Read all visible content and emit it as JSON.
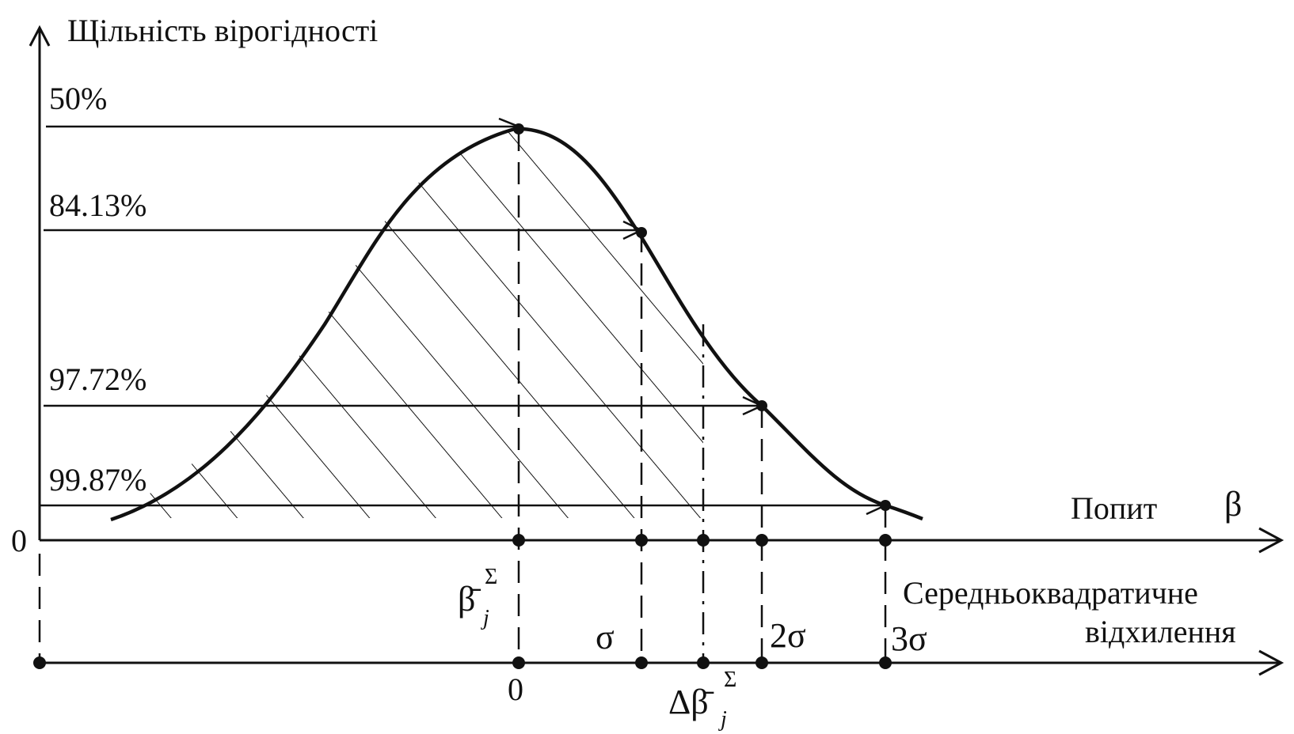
{
  "labels": {
    "y_axis": "Щільність вірогідності",
    "zero_y": "0",
    "demand": "Попит",
    "beta": "β",
    "rms_line1": "Середньоквадратичне",
    "rms_line2": "відхилення",
    "beta_mean_base": "β̄",
    "beta_mean_sub": "j",
    "beta_mean_sup": "Σ",
    "delta_beta_base": "Δβ̄",
    "delta_beta_sub": "j",
    "delta_beta_sup": "Σ",
    "zero_bottom": "0",
    "sigma1": "σ",
    "sigma2": "2σ",
    "sigma3": "3σ"
  },
  "percent_levels": [
    {
      "label": "50%"
    },
    {
      "label": "84.13%"
    },
    {
      "label": "97.72%"
    },
    {
      "label": "99.87%"
    }
  ],
  "colors": {
    "ink": "#111111",
    "background": "#ffffff"
  }
}
